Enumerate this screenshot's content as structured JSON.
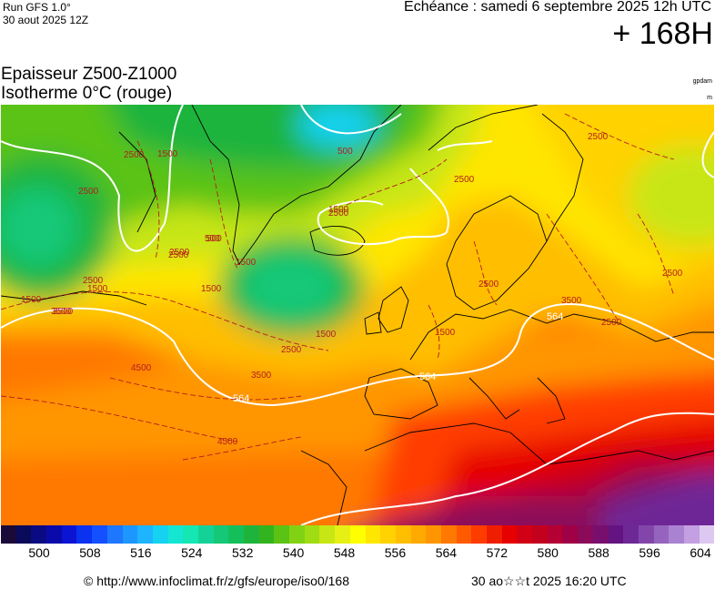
{
  "header": {
    "run": "Run GFS 1.0°",
    "run_init": "30 aout 2025 12Z",
    "valid": "Echéance : samedi 6 septembre 2025 12h UTC",
    "lead": "+ 168H"
  },
  "titles": {
    "line1": "Epaisseur Z500-Z1000",
    "line2": "Isotherme 0°C (rouge)",
    "unit1": "gpdam",
    "unit2": "m"
  },
  "map": {
    "thickness_labels": [
      "564",
      "564",
      "564"
    ],
    "freezing_level_labels": [
      "2500",
      "1500",
      "2500",
      "500",
      "1500",
      "500",
      "1500",
      "2500",
      "1500",
      "2500",
      "3500",
      "1500",
      "1500",
      "3500",
      "3500",
      "2500",
      "1500",
      "3500",
      "2500",
      "2500",
      "2500",
      "4500",
      "4500",
      "2500",
      "2500",
      "2500",
      "1500",
      "500",
      "2500"
    ],
    "colors": {
      "contour": "#ffffff",
      "freezing_level": "#b41e1e"
    }
  },
  "colorscale": {
    "colors": [
      "#1a0a3a",
      "#0a0a5a",
      "#0a0a82",
      "#0a0aaa",
      "#0a14d2",
      "#0a32f0",
      "#1450ff",
      "#1e78ff",
      "#1e96ff",
      "#1eb4ff",
      "#14d2f0",
      "#14e6d2",
      "#14e6b4",
      "#14d296",
      "#14c878",
      "#14be5a",
      "#1eb43c",
      "#32b41e",
      "#5ac314",
      "#82d214",
      "#a0dc14",
      "#c8e614",
      "#e6f014",
      "#ffff00",
      "#ffe600",
      "#ffd200",
      "#ffbe00",
      "#ffaa00",
      "#ff9600",
      "#ff7800",
      "#ff5a00",
      "#ff3c00",
      "#f01e00",
      "#e60000",
      "#d20014",
      "#c3001e",
      "#b40032",
      "#a00046",
      "#8c0a5a",
      "#780f6e",
      "#641482",
      "#6e2896",
      "#8246aa",
      "#9664be",
      "#aa82d2",
      "#c3a0e1",
      "#dcc8f0"
    ],
    "tick_labels": [
      "500",
      "508",
      "516",
      "524",
      "532",
      "540",
      "548",
      "556",
      "564",
      "572",
      "580",
      "588",
      "596",
      "604"
    ]
  },
  "footer": {
    "copyright": "© http://www.infoclimat.fr/z/gfs/europe/iso0/168",
    "generated": "30 ao☆☆t 2025 16:20 UTC"
  }
}
